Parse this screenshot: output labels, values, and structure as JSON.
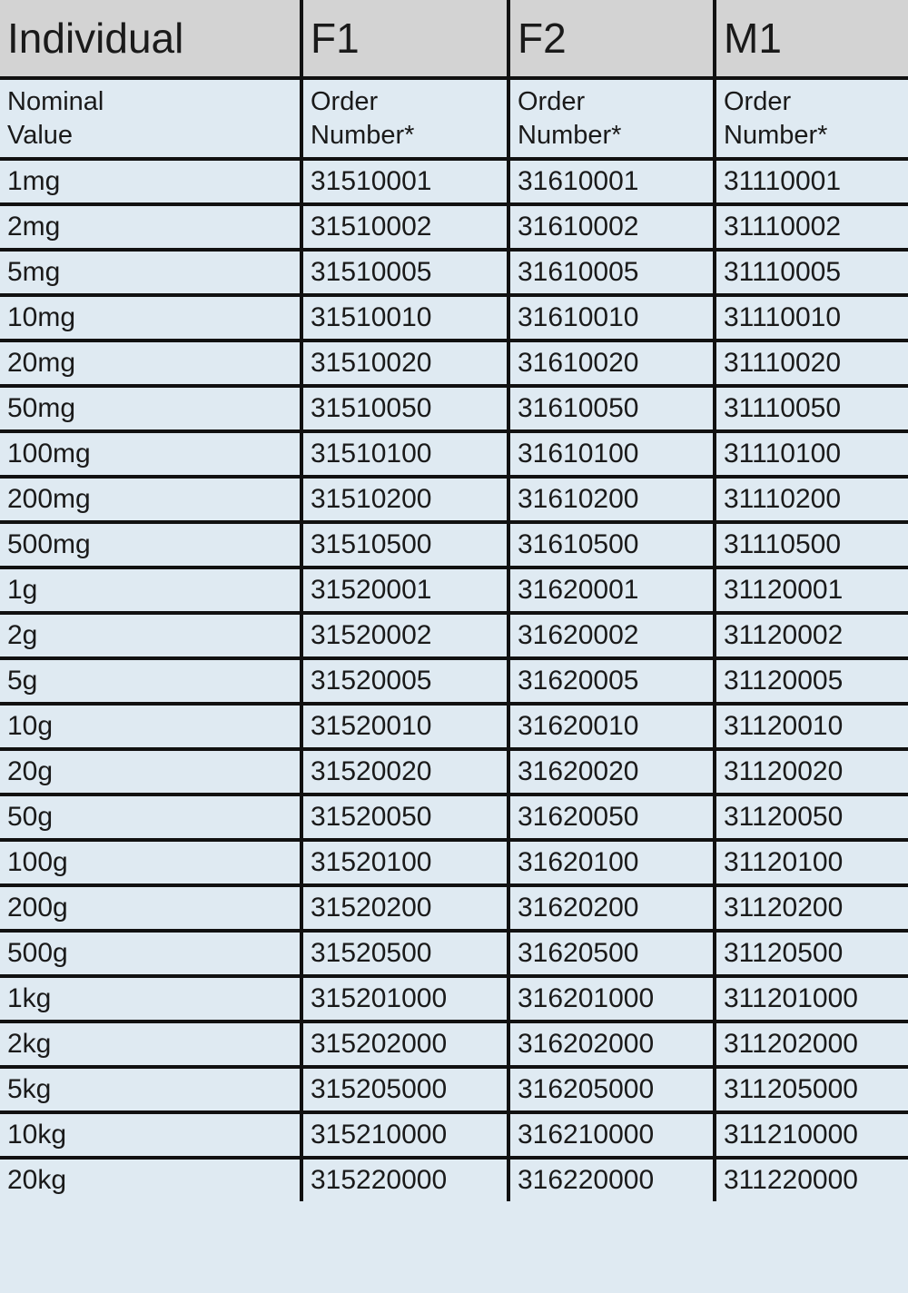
{
  "header": [
    "Individual",
    "F1",
    "F2",
    "M1"
  ],
  "subheader": [
    "Nominal\nValue",
    "Order\nNumber*",
    "Order\nNumber*",
    "Order\nNumber*"
  ],
  "rows": [
    [
      "1mg",
      "31510001",
      "31610001",
      "31110001"
    ],
    [
      "2mg",
      "31510002",
      "31610002",
      "31110002"
    ],
    [
      "5mg",
      "31510005",
      "31610005",
      "31110005"
    ],
    [
      "10mg",
      "31510010",
      "31610010",
      "31110010"
    ],
    [
      "20mg",
      "31510020",
      "31610020",
      "31110020"
    ],
    [
      "50mg",
      "31510050",
      "31610050",
      "31110050"
    ],
    [
      "100mg",
      "31510100",
      "31610100",
      "31110100"
    ],
    [
      "200mg",
      "31510200",
      "31610200",
      "31110200"
    ],
    [
      "500mg",
      "31510500",
      "31610500",
      "31110500"
    ],
    [
      "1g",
      "31520001",
      "31620001",
      "31120001"
    ],
    [
      "2g",
      "31520002",
      "31620002",
      "31120002"
    ],
    [
      "5g",
      "31520005",
      "31620005",
      "31120005"
    ],
    [
      "10g",
      "31520010",
      "31620010",
      "31120010"
    ],
    [
      "20g",
      "31520020",
      "31620020",
      "31120020"
    ],
    [
      "50g",
      "31520050",
      "31620050",
      "31120050"
    ],
    [
      "100g",
      "31520100",
      "31620100",
      "31120100"
    ],
    [
      "200g",
      "31520200",
      "31620200",
      "31120200"
    ],
    [
      "500g",
      "31520500",
      "31620500",
      "31120500"
    ],
    [
      "1kg",
      "315201000",
      "316201000",
      "311201000"
    ],
    [
      "2kg",
      "315202000",
      "316202000",
      "311202000"
    ],
    [
      "5kg",
      "315205000",
      "316205000",
      "311205000"
    ],
    [
      "10kg",
      "315210000",
      "316210000",
      "311210000"
    ],
    [
      "20kg",
      "315220000",
      "316220000",
      "311220000"
    ]
  ]
}
